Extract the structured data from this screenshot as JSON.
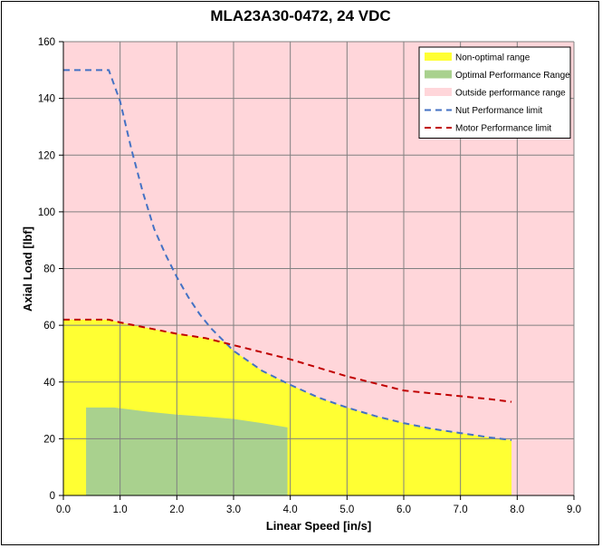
{
  "chart_data": {
    "type": "area",
    "title": "MLA23A30-0472, 24 VDC",
    "xlabel": "Linear Speed [in/s]",
    "ylabel": "Axial Load [lbf]",
    "xlim": [
      0,
      9
    ],
    "ylim": [
      0,
      160
    ],
    "x_ticks": [
      0,
      1,
      2,
      3,
      4,
      5,
      6,
      7,
      8,
      9
    ],
    "x_tick_labels": [
      "0.0",
      "1.0",
      "2.0",
      "3.0",
      "4.0",
      "5.0",
      "6.0",
      "7.0",
      "8.0",
      "9.0"
    ],
    "y_ticks": [
      0,
      20,
      40,
      60,
      80,
      100,
      120,
      140,
      160
    ],
    "y_tick_labels": [
      "0",
      "20",
      "40",
      "60",
      "80",
      "100",
      "120",
      "140",
      "160"
    ],
    "grid": true,
    "legend_position": "top-right",
    "series": [
      {
        "name": "Non-optimal range",
        "style": "area",
        "color": "#ffff33",
        "x": [
          0,
          0.8,
          1.0,
          1.5,
          2.0,
          2.5,
          2.8,
          3.0,
          3.5,
          4.0,
          4.5,
          5.0,
          5.5,
          6.0,
          6.5,
          7.0,
          7.5,
          7.9,
          7.9,
          0
        ],
        "y": [
          62,
          62,
          61,
          59,
          57,
          55.5,
          54.5,
          51,
          44,
          39,
          34.5,
          31,
          28,
          25.5,
          23.5,
          22,
          20.5,
          19.5,
          0,
          0
        ]
      },
      {
        "name": "Optimal Performance Range",
        "style": "area",
        "color": "#a9d18e",
        "x": [
          0.4,
          0.9,
          1.5,
          2.0,
          2.5,
          3.0,
          3.5,
          3.95,
          3.95,
          0.4
        ],
        "y": [
          31,
          31,
          29.5,
          28.5,
          27.8,
          27,
          25.5,
          24,
          0,
          0
        ]
      },
      {
        "name": "Outside performance range",
        "style": "area",
        "color": "#ffd6da"
      },
      {
        "name": "Nut Performance limit",
        "style": "dashed-line",
        "color": "#4472c4",
        "x": [
          0,
          0.8,
          1.0,
          1.2,
          1.4,
          1.6,
          1.8,
          2.0,
          2.2,
          2.4,
          2.6,
          2.8,
          3.0,
          3.5,
          4.0,
          4.5,
          5.0,
          5.5,
          6.0,
          6.5,
          7.0,
          7.5,
          7.9
        ],
        "y": [
          150,
          150,
          139,
          122,
          107,
          94,
          85,
          77,
          70,
          64,
          59,
          55,
          51,
          44,
          39,
          34.5,
          31,
          28,
          25.5,
          23.5,
          22,
          20.5,
          19.5
        ]
      },
      {
        "name": "Motor Performance limit",
        "style": "dashed-line",
        "color": "#c00000",
        "x": [
          0,
          0.8,
          1.0,
          1.5,
          2.0,
          2.5,
          3.0,
          3.5,
          4.0,
          4.5,
          5.0,
          5.5,
          6.0,
          6.5,
          7.0,
          7.5,
          7.9
        ],
        "y": [
          62,
          62,
          61,
          59,
          57,
          55.5,
          53,
          50.5,
          48,
          45,
          42,
          39.5,
          37,
          36,
          35,
          34,
          33
        ]
      }
    ]
  },
  "colors": {
    "plot_background": "#ffd6da",
    "grid": "#808080",
    "axis": "#000000"
  }
}
